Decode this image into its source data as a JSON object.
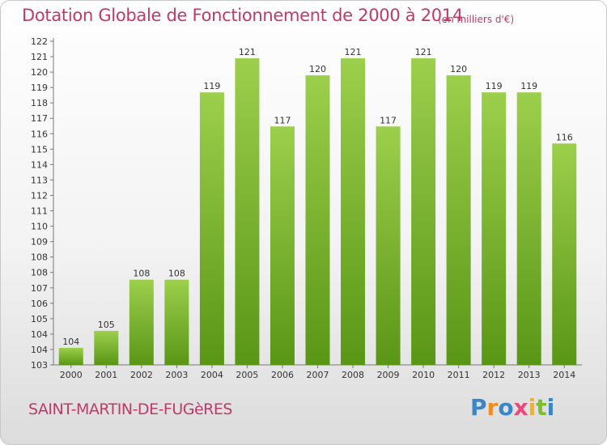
{
  "colors": {
    "title": "#c0396a",
    "bar_top": "#9ccf4c",
    "bar_bottom": "#5a9616",
    "axis_text": "#333333"
  },
  "header": {
    "title": "Dotation Globale de Fonctionnement de 2000 à 2014",
    "unit": "(en milliers d'€)"
  },
  "footer": {
    "commune": "SAINT-MARTIN-DE-FUGèRES",
    "logo": [
      {
        "char": "P",
        "color": "#3a86c8"
      },
      {
        "char": "r",
        "color": "#f08c1e"
      },
      {
        "char": "o",
        "color": "#3a86c8"
      },
      {
        "char": "x",
        "color": "#e84a7a"
      },
      {
        "char": "i",
        "color": "#f5b21e"
      },
      {
        "char": "t",
        "color": "#7cbf2e"
      },
      {
        "char": "i",
        "color": "#3a86c8"
      }
    ]
  },
  "chart_data": {
    "type": "bar",
    "title": "Dotation Globale de Fonctionnement de 2000 à 2014",
    "categories": [
      "2000",
      "2001",
      "2002",
      "2003",
      "2004",
      "2005",
      "2006",
      "2007",
      "2008",
      "2009",
      "2010",
      "2011",
      "2012",
      "2013",
      "2014"
    ],
    "values": [
      104,
      105,
      108,
      108,
      119,
      121,
      117,
      120,
      121,
      117,
      121,
      120,
      119,
      119,
      116
    ],
    "value_labels": [
      "104",
      "105",
      "108",
      "108",
      "119",
      "121",
      "117",
      "120",
      "121",
      "117",
      "121",
      "120",
      "119",
      "119",
      "116"
    ],
    "ylim": [
      103,
      122
    ],
    "yticks": [
      "103",
      "104",
      "104",
      "105",
      "106",
      "107",
      "108",
      "108",
      "109",
      "110",
      "111",
      "112",
      "113",
      "114",
      "115",
      "116",
      "117",
      "118",
      "119",
      "120",
      "121",
      "122"
    ],
    "grid": false,
    "legend": "none"
  }
}
